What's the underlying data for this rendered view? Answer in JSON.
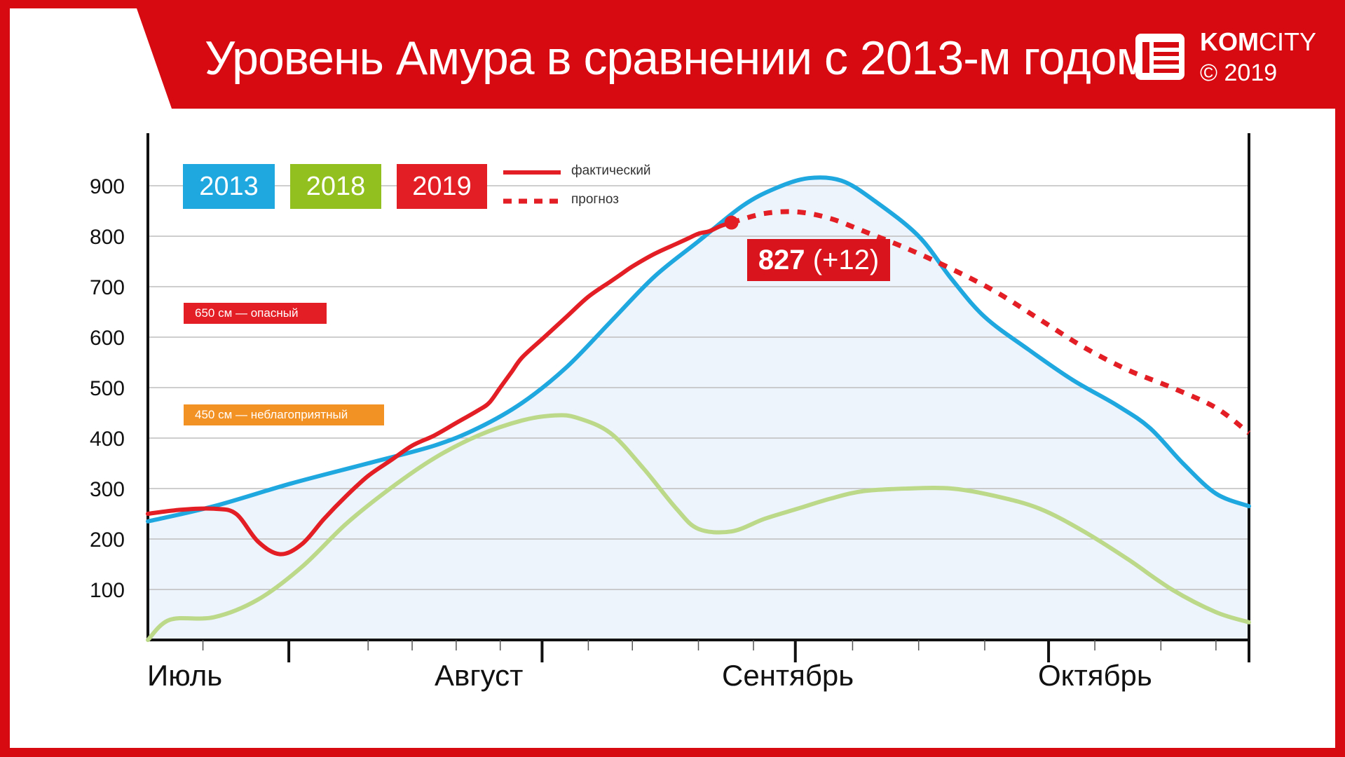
{
  "header": {
    "title": "Уровень Амура в сравнении с 2013-м годом",
    "brand_kom": "KOM",
    "brand_city": "CITY",
    "copyright": "© 2019",
    "background_color": "#d70a12"
  },
  "legend": {
    "years": [
      {
        "label": "2013",
        "color": "#1fa7e0"
      },
      {
        "label": "2018",
        "color": "#92c01f"
      },
      {
        "label": "2019",
        "color": "#e31e24"
      }
    ],
    "actual_label": "фактический",
    "forecast_label": "прогноз"
  },
  "thresholds": [
    {
      "label": "650 см — опасный",
      "value": 650,
      "color": "#e31e24"
    },
    {
      "label": "450 см — неблагоприятный",
      "value": 450,
      "color": "#f39224"
    }
  ],
  "callout": {
    "value": "827",
    "delta": "(+12)"
  },
  "chart_data": {
    "type": "line",
    "ylim": [
      0,
      900
    ],
    "y_ticks": [
      100,
      200,
      300,
      400,
      500,
      600,
      700,
      800,
      900
    ],
    "month_labels": [
      "Июль",
      "Август",
      "Сентябрь",
      "Октябрь"
    ],
    "x_unit_note": "",
    "grid": true,
    "series": [
      {
        "name": "2013",
        "color": "#1fa7e0",
        "style": "solid",
        "x": [
          0,
          0.06,
          0.13,
          0.2,
          0.26,
          0.3,
          0.34,
          0.38,
          0.42,
          0.46,
          0.5,
          0.54,
          0.57,
          0.6,
          0.63,
          0.66,
          0.7,
          0.73,
          0.76,
          0.8,
          0.84,
          0.88,
          0.91,
          0.94,
          0.97,
          1.0
        ],
        "values": [
          235,
          265,
          310,
          350,
          385,
          420,
          470,
          540,
          630,
          720,
          790,
          860,
          895,
          915,
          910,
          870,
          800,
          715,
          640,
          575,
          515,
          465,
          420,
          350,
          290,
          265
        ]
      },
      {
        "name": "2018",
        "color": "#bcd98a",
        "style": "solid",
        "x": [
          0,
          0.02,
          0.06,
          0.1,
          0.14,
          0.18,
          0.22,
          0.26,
          0.3,
          0.34,
          0.37,
          0.39,
          0.42,
          0.45,
          0.48,
          0.5,
          0.53,
          0.56,
          0.59,
          0.62,
          0.65,
          0.69,
          0.73,
          0.77,
          0.81,
          0.85,
          0.89,
          0.93,
          0.97,
          1.0
        ],
        "values": [
          0,
          40,
          45,
          80,
          145,
          230,
          300,
          360,
          405,
          435,
          445,
          440,
          410,
          340,
          260,
          220,
          215,
          240,
          260,
          280,
          295,
          300,
          300,
          285,
          260,
          215,
          160,
          100,
          55,
          35
        ]
      },
      {
        "name": "2019 фактический",
        "color": "#e31e24",
        "style": "solid",
        "x": [
          0,
          0.03,
          0.06,
          0.08,
          0.1,
          0.12,
          0.14,
          0.16,
          0.18,
          0.2,
          0.22,
          0.24,
          0.26,
          0.28,
          0.3,
          0.31,
          0.32,
          0.33,
          0.34,
          0.36,
          0.38,
          0.4,
          0.42,
          0.43,
          0.44,
          0.46,
          0.48,
          0.49,
          0.5,
          0.51,
          0.52,
          0.53
        ],
        "values": [
          250,
          258,
          260,
          250,
          195,
          170,
          190,
          240,
          285,
          325,
          355,
          385,
          405,
          430,
          455,
          470,
          500,
          530,
          560,
          600,
          640,
          680,
          710,
          725,
          740,
          765,
          785,
          795,
          805,
          810,
          820,
          827
        ]
      },
      {
        "name": "2019 прогноз",
        "color": "#e31e24",
        "style": "dashed",
        "x": [
          0.53,
          0.56,
          0.59,
          0.62,
          0.65,
          0.69,
          0.73,
          0.77,
          0.81,
          0.85,
          0.89,
          0.93,
          0.97,
          1.0
        ],
        "values": [
          827,
          845,
          848,
          835,
          810,
          775,
          735,
          690,
          635,
          580,
          535,
          500,
          460,
          410
        ]
      }
    ]
  }
}
